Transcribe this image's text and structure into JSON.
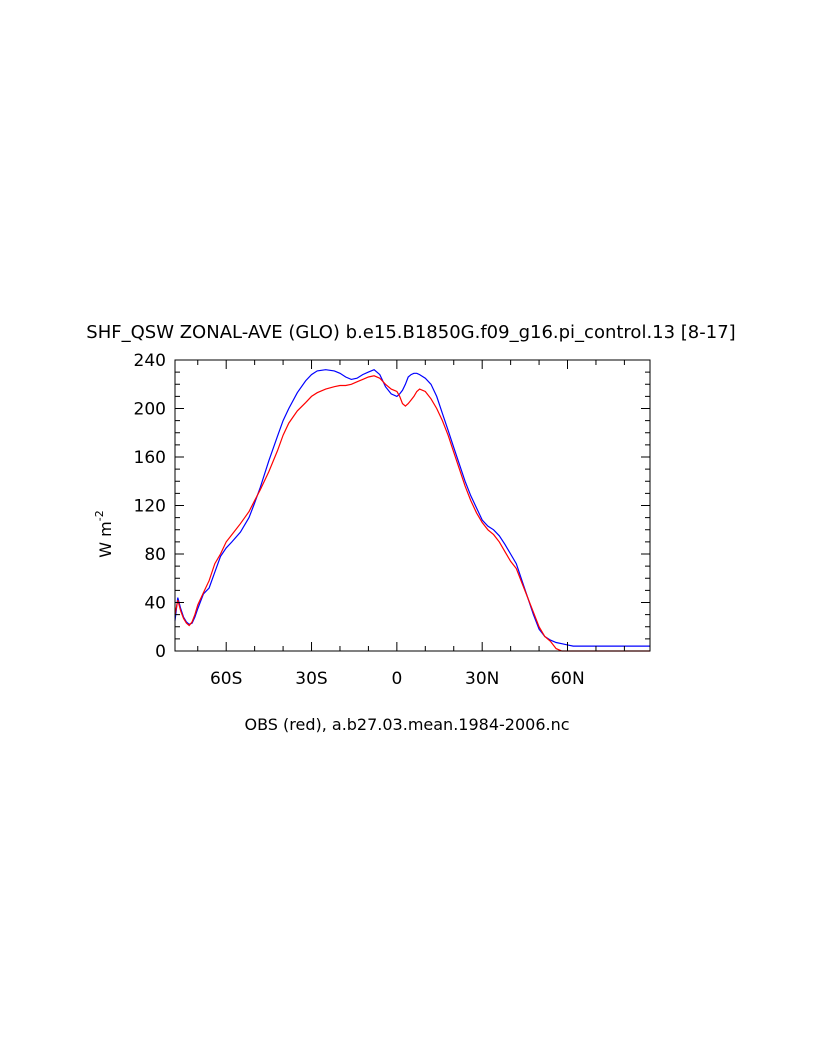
{
  "chart_data": {
    "type": "line",
    "title": "SHF_QSW ZONAL-AVE (GLO) b.e15.B1850G.f09_g16.pi_control.13 [8-17]",
    "ylabel": "W m",
    "ylabel_exponent": "-2",
    "xlabel": "OBS (red), a.b27.03.mean.1984-2006.nc",
    "xlim": [
      -78,
      89
    ],
    "ylim": [
      0,
      240
    ],
    "y_ticks": [
      0,
      40,
      80,
      120,
      160,
      200,
      240
    ],
    "y_tick_labels": [
      "0",
      "40",
      "80",
      "120",
      "160",
      "200",
      "240"
    ],
    "x_ticks": [
      -60,
      -30,
      0,
      30,
      60
    ],
    "x_tick_labels": [
      "60S",
      "30S",
      "0",
      "30N",
      "60N"
    ],
    "grid": false,
    "series": [
      {
        "color": "#0000ff",
        "x": [
          -78,
          -77,
          -76,
          -75,
          -74,
          -73,
          -72,
          -71,
          -70,
          -68,
          -66,
          -64,
          -62,
          -60,
          -58,
          -55,
          -52,
          -50,
          -48,
          -45,
          -42,
          -40,
          -38,
          -35,
          -32,
          -30,
          -28,
          -25,
          -22,
          -20,
          -18,
          -16,
          -14,
          -12,
          -10,
          -8,
          -6,
          -4,
          -2,
          0,
          1,
          2,
          3,
          4,
          5,
          6,
          7,
          8,
          10,
          12,
          14,
          16,
          18,
          20,
          22,
          24,
          26,
          28,
          30,
          32,
          34,
          36,
          38,
          40,
          42,
          44,
          46,
          48,
          50,
          52,
          54,
          56,
          58,
          60,
          62,
          64,
          66,
          68,
          70,
          72,
          74,
          76,
          78,
          80,
          82,
          84,
          86,
          88,
          89
        ],
        "y": [
          25,
          44,
          35,
          28,
          24,
          22,
          23,
          28,
          35,
          47,
          52,
          65,
          78,
          85,
          90,
          98,
          110,
          122,
          135,
          157,
          177,
          190,
          200,
          213,
          223,
          228,
          231,
          232,
          231,
          229,
          226,
          224,
          225,
          228,
          230,
          232,
          228,
          218,
          212,
          210,
          212,
          215,
          220,
          226,
          228,
          229,
          229,
          228,
          225,
          220,
          210,
          196,
          182,
          168,
          154,
          140,
          128,
          118,
          108,
          103,
          100,
          95,
          88,
          80,
          72,
          58,
          44,
          30,
          18,
          12,
          9,
          7,
          6,
          5,
          4,
          4,
          4,
          4,
          4,
          4,
          4,
          4,
          4,
          4,
          4,
          4,
          4,
          4,
          4
        ]
      },
      {
        "color": "#ff0000",
        "x": [
          -78,
          -77,
          -76,
          -75,
          -74,
          -73,
          -72,
          -71,
          -70,
          -68,
          -66,
          -64,
          -62,
          -60,
          -58,
          -55,
          -52,
          -50,
          -48,
          -45,
          -42,
          -40,
          -38,
          -35,
          -32,
          -30,
          -28,
          -25,
          -22,
          -20,
          -18,
          -16,
          -14,
          -12,
          -10,
          -8,
          -6,
          -4,
          -2,
          0,
          1,
          2,
          3,
          4,
          5,
          6,
          7,
          8,
          10,
          12,
          14,
          16,
          18,
          20,
          22,
          24,
          26,
          28,
          30,
          32,
          34,
          36,
          38,
          40,
          42,
          44,
          46,
          48,
          50,
          52,
          54,
          56,
          58,
          60,
          62,
          64,
          66,
          68,
          70,
          72,
          74,
          76,
          78,
          80,
          82,
          84,
          86,
          88,
          89
        ],
        "y": [
          30,
          42,
          33,
          27,
          23,
          21,
          24,
          30,
          38,
          48,
          58,
          72,
          80,
          90,
          96,
          105,
          115,
          124,
          133,
          148,
          165,
          178,
          188,
          198,
          205,
          210,
          213,
          216,
          218,
          219,
          219,
          220,
          222,
          224,
          226,
          227,
          225,
          220,
          216,
          214,
          210,
          204,
          202,
          204,
          207,
          210,
          214,
          216,
          214,
          208,
          200,
          190,
          178,
          164,
          150,
          136,
          124,
          114,
          106,
          100,
          96,
          90,
          82,
          74,
          68,
          56,
          44,
          32,
          20,
          12,
          8,
          2,
          0,
          0,
          0,
          0,
          0,
          0,
          0,
          0,
          0,
          0,
          0,
          0,
          0,
          0,
          0,
          0,
          0
        ]
      }
    ]
  }
}
